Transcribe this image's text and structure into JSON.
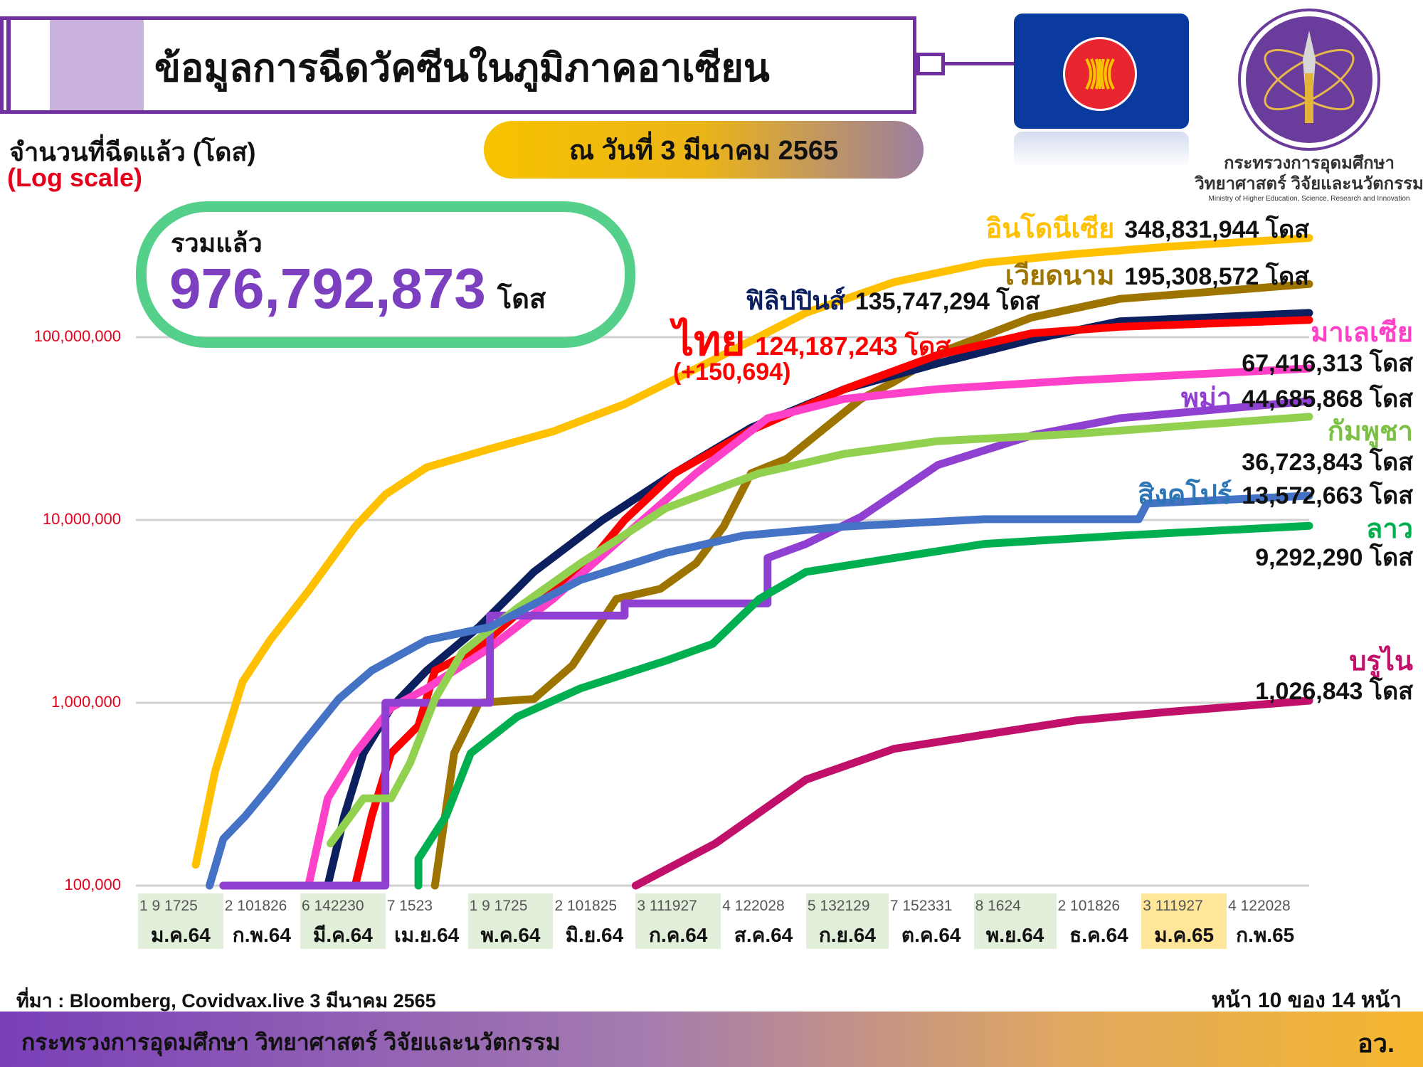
{
  "header": {
    "title": "ข้อมูลการฉีดวัคซีนในภูมิภาคอาเซียน",
    "date_label": "ณ วันที่ 3 มีนาคม 2565",
    "ministry_name_line1": "กระทรวงการอุดมศึกษา",
    "ministry_name_line2": "วิทยาศาสตร์ วิจัยและนวัตกรรม",
    "ministry_name_en": "Ministry of Higher Education, Science, Research and Innovation",
    "asean_flag_colors": {
      "field": "#0A3A9E",
      "circle": "#E8262F",
      "rice": "#F7C300"
    }
  },
  "total": {
    "label": "รวมแล้ว",
    "value": "976,792,873",
    "unit": "โดส"
  },
  "chart_data": {
    "type": "line",
    "title": "",
    "ylabel": "จำนวนที่ฉีดแล้ว (โดส)",
    "yscale_note": "(Log scale)",
    "yscale": "log",
    "ylim": [
      100000,
      400000000
    ],
    "xlim": [
      "2021-01-01",
      "2022-03-03"
    ],
    "grid": "horizontal",
    "yticks": [
      "100,000",
      "1,000,000",
      "10,000,000",
      "100,000,000"
    ],
    "ytick_values": [
      100000,
      1000000,
      10000000,
      100000000
    ],
    "months": [
      {
        "days": "1  9 1725",
        "label": "ม.ค.64",
        "highlight": "#E2EFDA"
      },
      {
        "days": "2 101826",
        "label": "ก.พ.64",
        "highlight": ""
      },
      {
        "days": "6 142230",
        "label": "มี.ค.64",
        "highlight": "#E2EFDA"
      },
      {
        "days": "7 1523",
        "label": "เม.ย.64",
        "highlight": ""
      },
      {
        "days": "1  9 1725",
        "label": "พ.ค.64",
        "highlight": "#E2EFDA"
      },
      {
        "days": "2 101825",
        "label": "มิ.ย.64",
        "highlight": ""
      },
      {
        "days": "3 111927",
        "label": "ก.ค.64",
        "highlight": "#E2EFDA"
      },
      {
        "days": "4 122028",
        "label": "ส.ค.64",
        "highlight": ""
      },
      {
        "days": "5 132129",
        "label": "ก.ย.64",
        "highlight": "#E2EFDA"
      },
      {
        "days": "7 152331",
        "label": "ต.ค.64",
        "highlight": ""
      },
      {
        "days": "8 1624",
        "label": "พ.ย.64",
        "highlight": "#E2EFDA"
      },
      {
        "days": "2 101826",
        "label": "ธ.ค.64",
        "highlight": ""
      },
      {
        "days": "3 111927",
        "label": "ม.ค.65",
        "highlight": "#FFE699"
      },
      {
        "days": "4 122028",
        "label": "ก.พ.65",
        "highlight": ""
      }
    ],
    "series": [
      {
        "name": "อินโดนีเซีย",
        "total": "348,831,944 โดส",
        "color": "#FFC000",
        "points": [
          [
            "2021-01-22",
            130000
          ],
          [
            "2021-01-29",
            420000
          ],
          [
            "2021-02-08",
            1300000
          ],
          [
            "2021-02-18",
            2200000
          ],
          [
            "2021-03-04",
            4100000
          ],
          [
            "2021-03-21",
            9200000
          ],
          [
            "2021-04-01",
            13800000
          ],
          [
            "2021-04-16",
            19400000
          ],
          [
            "2021-05-09",
            24500000
          ],
          [
            "2021-06-01",
            30500000
          ],
          [
            "2021-06-27",
            43000000
          ],
          [
            "2021-07-30",
            76000000
          ],
          [
            "2021-09-01",
            136000000
          ],
          [
            "2021-10-03",
            200000000
          ],
          [
            "2021-11-05",
            255000000
          ],
          [
            "2021-12-08",
            285000000
          ],
          [
            "2022-01-10",
            312000000
          ],
          [
            "2022-03-03",
            348831944
          ]
        ]
      },
      {
        "name": "เวียดนาม",
        "total": "195,308,572 โดส",
        "color": "#9E7400",
        "points": [
          [
            "2021-04-19",
            100000
          ],
          [
            "2021-04-26",
            530000
          ],
          [
            "2021-05-05",
            1000000
          ],
          [
            "2021-05-25",
            1050000
          ],
          [
            "2021-06-08",
            1600000
          ],
          [
            "2021-06-24",
            3700000
          ],
          [
            "2021-07-10",
            4200000
          ],
          [
            "2021-07-23",
            5800000
          ],
          [
            "2021-08-02",
            9200000
          ],
          [
            "2021-08-12",
            18000000
          ],
          [
            "2021-08-25",
            21600000
          ],
          [
            "2021-09-08",
            32000000
          ],
          [
            "2021-09-21",
            46000000
          ],
          [
            "2021-10-03",
            57000000
          ],
          [
            "2021-10-23",
            86000000
          ],
          [
            "2021-11-22",
            128000000
          ],
          [
            "2021-12-24",
            162000000
          ],
          [
            "2022-03-03",
            195308572
          ]
        ]
      },
      {
        "name": "ฟิลิปปินส์",
        "total": "135,747,294 โดส",
        "color": "#0C1F5E",
        "points": [
          [
            "2021-03-11",
            100000
          ],
          [
            "2021-03-17",
            240000
          ],
          [
            "2021-03-24",
            530000
          ],
          [
            "2021-04-03",
            940000
          ],
          [
            "2021-04-16",
            1500000
          ],
          [
            "2021-05-05",
            2600000
          ],
          [
            "2021-05-25",
            5200000
          ],
          [
            "2021-06-19",
            10000000
          ],
          [
            "2021-07-15",
            18000000
          ],
          [
            "2021-08-12",
            32000000
          ],
          [
            "2021-09-15",
            52000000
          ],
          [
            "2021-10-19",
            72000000
          ],
          [
            "2021-11-22",
            97000000
          ],
          [
            "2021-12-24",
            122000000
          ],
          [
            "2022-03-03",
            135747294
          ]
        ]
      },
      {
        "name": "ไทย",
        "total": "124,187,243 โดส",
        "daily_change": "(+150,694)",
        "color": "#FF0000",
        "points": [
          [
            "2021-03-21",
            100000
          ],
          [
            "2021-03-27",
            240000
          ],
          [
            "2021-04-03",
            530000
          ],
          [
            "2021-04-13",
            750000
          ],
          [
            "2021-04-19",
            1500000
          ],
          [
            "2021-05-05",
            2000000
          ],
          [
            "2021-05-25",
            3700000
          ],
          [
            "2021-06-14",
            5800000
          ],
          [
            "2021-06-27",
            10000000
          ],
          [
            "2021-07-15",
            18000000
          ],
          [
            "2021-08-12",
            31000000
          ],
          [
            "2021-09-15",
            52000000
          ],
          [
            "2021-10-19",
            80000000
          ],
          [
            "2021-11-22",
            105000000
          ],
          [
            "2021-12-24",
            114000000
          ],
          [
            "2022-03-03",
            124187243
          ]
        ]
      },
      {
        "name": "มาเลเซีย",
        "total": "67,416,313 โดส",
        "color": "#FF40C8",
        "points": [
          [
            "2021-03-04",
            100000
          ],
          [
            "2021-03-11",
            300000
          ],
          [
            "2021-03-21",
            530000
          ],
          [
            "2021-04-03",
            940000
          ],
          [
            "2021-04-16",
            1200000
          ],
          [
            "2021-05-09",
            2000000
          ],
          [
            "2021-06-01",
            3700000
          ],
          [
            "2021-06-27",
            8200000
          ],
          [
            "2021-07-23",
            18000000
          ],
          [
            "2021-08-18",
            36000000
          ],
          [
            "2021-09-15",
            46000000
          ],
          [
            "2021-10-19",
            52000000
          ],
          [
            "2021-12-08",
            58000000
          ],
          [
            "2022-03-03",
            67416313
          ]
        ]
      },
      {
        "name": "พม่า",
        "total": "44,685,868 โดส",
        "color": "#9040D0",
        "points": [
          [
            "2021-02-01",
            100000
          ],
          [
            "2021-04-01",
            100000
          ],
          [
            "2021-04-01",
            1000000
          ],
          [
            "2021-05-09",
            1000000
          ],
          [
            "2021-05-09",
            3000000
          ],
          [
            "2021-06-27",
            3000000
          ],
          [
            "2021-06-27",
            3500000
          ],
          [
            "2021-08-18",
            3500000
          ],
          [
            "2021-08-18",
            6200000
          ],
          [
            "2021-09-01",
            7400000
          ],
          [
            "2021-09-21",
            10400000
          ],
          [
            "2021-10-19",
            20000000
          ],
          [
            "2021-11-22",
            29000000
          ],
          [
            "2021-12-24",
            36000000
          ],
          [
            "2022-03-03",
            44685868
          ]
        ]
      },
      {
        "name": "กัมพูชา",
        "total": "36,723,843 โดส",
        "color": "#92D050",
        "points": [
          [
            "2021-03-12",
            170000
          ],
          [
            "2021-03-24",
            300000
          ],
          [
            "2021-04-03",
            300000
          ],
          [
            "2021-04-10",
            470000
          ],
          [
            "2021-04-19",
            1050000
          ],
          [
            "2021-04-29",
            1900000
          ],
          [
            "2021-05-19",
            3300000
          ],
          [
            "2021-06-11",
            5800000
          ],
          [
            "2021-07-12",
            11600000
          ],
          [
            "2021-08-15",
            18000000
          ],
          [
            "2021-09-15",
            23000000
          ],
          [
            "2021-10-19",
            27000000
          ],
          [
            "2021-12-08",
            29600000
          ],
          [
            "2022-03-03",
            36723843
          ]
        ]
      },
      {
        "name": "สิงคโปร์",
        "total": "13,572,663 โดส",
        "color": "#4472C4",
        "points": [
          [
            "2021-01-27",
            100000
          ],
          [
            "2021-02-01",
            180000
          ],
          [
            "2021-02-09",
            240000
          ],
          [
            "2021-02-18",
            350000
          ],
          [
            "2021-03-02",
            600000
          ],
          [
            "2021-03-15",
            1050000
          ],
          [
            "2021-03-27",
            1500000
          ],
          [
            "2021-04-16",
            2200000
          ],
          [
            "2021-05-09",
            2600000
          ],
          [
            "2021-06-11",
            4700000
          ],
          [
            "2021-07-12",
            6600000
          ],
          [
            "2021-08-09",
            8200000
          ],
          [
            "2021-09-15",
            9200000
          ],
          [
            "2021-11-05",
            10100000
          ],
          [
            "2021-12-31",
            10100000
          ],
          [
            "2022-01-03",
            12300000
          ],
          [
            "2022-03-03",
            13572663
          ]
        ]
      },
      {
        "name": "ลาว",
        "total": "9,292,290 โดส",
        "color": "#00B050",
        "points": [
          [
            "2021-04-13",
            100000
          ],
          [
            "2021-04-13",
            140000
          ],
          [
            "2021-04-23",
            240000
          ],
          [
            "2021-05-02",
            530000
          ],
          [
            "2021-05-19",
            840000
          ],
          [
            "2021-06-11",
            1200000
          ],
          [
            "2021-07-12",
            1700000
          ],
          [
            "2021-07-29",
            2100000
          ],
          [
            "2021-08-15",
            3700000
          ],
          [
            "2021-09-01",
            5200000
          ],
          [
            "2021-10-03",
            6200000
          ],
          [
            "2021-11-05",
            7400000
          ],
          [
            "2021-12-24",
            8200000
          ],
          [
            "2022-03-03",
            9292290
          ]
        ]
      },
      {
        "name": "บรูไน",
        "total": "1,026,843 โดส",
        "color": "#C0106A",
        "points": [
          [
            "2021-07-01",
            100000
          ],
          [
            "2021-07-30",
            170000
          ],
          [
            "2021-09-01",
            380000
          ],
          [
            "2021-10-03",
            560000
          ],
          [
            "2021-11-05",
            670000
          ],
          [
            "2021-12-08",
            800000
          ],
          [
            "2022-01-10",
            890000
          ],
          [
            "2022-03-03",
            1026843
          ]
        ]
      }
    ]
  },
  "footer": {
    "source": "ที่มา : Bloomberg, Covidvax.live 3 มีนาคม 2565",
    "page": "หน้า 10 ของ 14 หน้า",
    "ministry": "กระทรวงการอุดมศึกษา วิทยาศาสตร์ วิจัยและนวัตกรรม",
    "ministry_abbr": "อว."
  }
}
